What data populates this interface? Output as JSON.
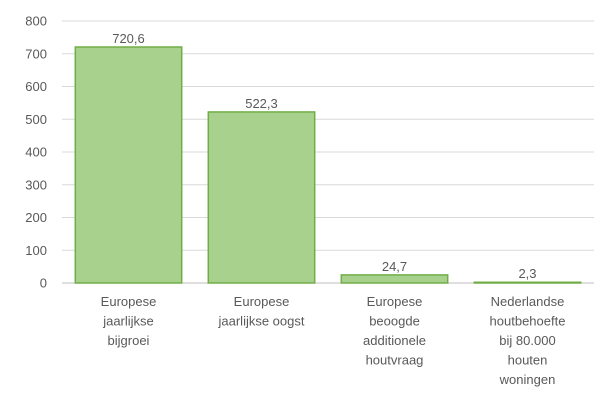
{
  "chart_data": {
    "type": "bar",
    "title": "",
    "xlabel": "",
    "ylabel": "",
    "ylim": [
      0,
      800
    ],
    "yticks": [
      "0",
      "100",
      "200",
      "300",
      "400",
      "500",
      "600",
      "700",
      "800"
    ],
    "grid": true,
    "legend": "none",
    "categories": [
      [
        "Europese",
        "jaarlijkse",
        "bijgroei"
      ],
      [
        "Europese",
        "jaarlijkse oogst"
      ],
      [
        "Europese",
        "beoogde",
        "additionele",
        "houtvraag"
      ],
      [
        "Nederlandse",
        "houtbehoefte",
        "bij 80.000",
        "houten",
        "woningen"
      ]
    ],
    "values": [
      720.6,
      522.3,
      24.7,
      2.3
    ],
    "data_labels": [
      "720,6",
      "522,3",
      "24,7",
      "2,3"
    ],
    "colors": {
      "bar_fill": "#a9d18e",
      "bar_stroke": "#70ad47",
      "grid": "#d9d9d9",
      "text": "#595959"
    }
  }
}
